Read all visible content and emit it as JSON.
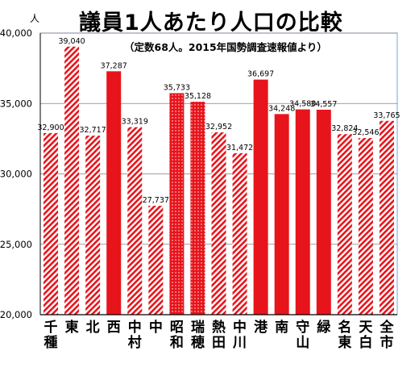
{
  "chart_data": {
    "type": "bar",
    "title": "議員1人あたり人口の比較",
    "subtitle": "（定数68人。2015年国勢調査速報値より）",
    "ylabel": "人",
    "ylim": [
      20000,
      40000
    ],
    "yticks": [
      "20,000",
      "25,000",
      "30,000",
      "35,000",
      "40,000"
    ],
    "ytick_values": [
      20000,
      25000,
      30000,
      35000,
      40000
    ],
    "grid": true,
    "categories": [
      "千種",
      "東",
      "北",
      "西",
      "中村",
      "中",
      "昭和",
      "瑞穂",
      "熱田",
      "中川",
      "港",
      "南",
      "守山",
      "緑",
      "名東",
      "天白",
      "全市"
    ],
    "values": [
      32900,
      39040,
      32717,
      37287,
      33319,
      27737,
      35733,
      35128,
      32952,
      31472,
      36697,
      34248,
      34580,
      34557,
      32824,
      32546,
      33765
    ],
    "value_labels": [
      "32,900",
      "39,040",
      "32,717",
      "37,287",
      "33,319",
      "27,737",
      "35,733",
      "35,128",
      "32,952",
      "31,472",
      "36,697",
      "34,248",
      "34,580",
      "34,557",
      "32,824",
      "32,546",
      "33,765"
    ],
    "bar_styles": [
      "hatch",
      "hatch",
      "hatch",
      "solid",
      "hatch",
      "hatch",
      "dotted",
      "dotted",
      "hatch",
      "hatch",
      "solid",
      "solid",
      "solid",
      "solid",
      "hatch",
      "hatch",
      "hatch"
    ],
    "colors": {
      "bar": "#e8141b",
      "hatch_bg": "#ffffff",
      "axis": "#000000",
      "grid": "#808080",
      "frame": "#6fa8dc"
    }
  }
}
